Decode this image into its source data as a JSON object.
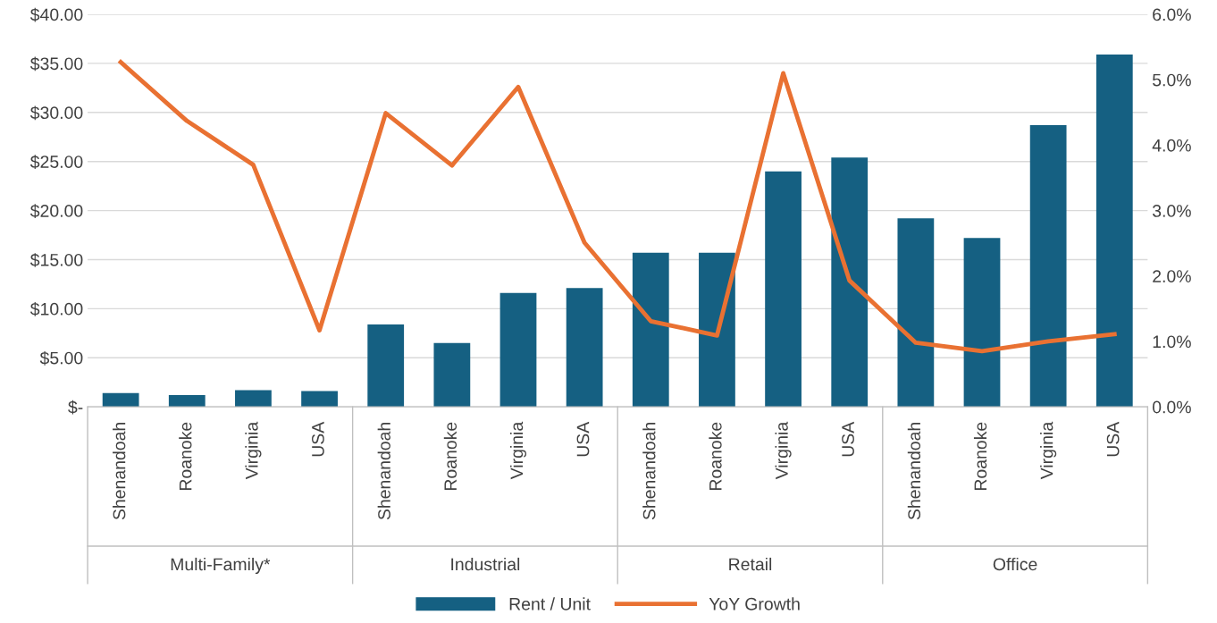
{
  "chart_data": {
    "type": "bar",
    "categories": [
      "Shenandoah",
      "Roanoke",
      "Virginia",
      "USA",
      "Shenandoah",
      "Roanoke",
      "Virginia",
      "USA",
      "Shenandoah",
      "Roanoke",
      "Virginia",
      "USA",
      "Shenandoah",
      "Roanoke",
      "Virginia",
      "USA"
    ],
    "series": [
      {
        "name": "Rent / Unit",
        "color": "#156082",
        "values": [
          1.4,
          1.2,
          1.7,
          1.6,
          8.4,
          6.5,
          11.6,
          12.1,
          15.7,
          15.7,
          24.0,
          25.4,
          19.2,
          17.2,
          28.7,
          35.9
        ]
      },
      {
        "name": "YoY Growth",
        "type": "line",
        "axis": "y2",
        "color": "#e97132",
        "values": [
          5.27,
          4.37,
          3.7,
          1.17,
          4.49,
          3.69,
          4.89,
          2.51,
          1.31,
          1.09,
          5.1,
          1.93,
          0.98,
          0.85,
          1.0,
          1.11
        ]
      }
    ],
    "ylim": [
      0,
      40
    ],
    "yticks": [
      {
        "value": 0,
        "label": "$-"
      },
      {
        "value": 5,
        "label": "$5.00"
      },
      {
        "value": 10,
        "label": "$10.00"
      },
      {
        "value": 15,
        "label": "$15.00"
      },
      {
        "value": 20,
        "label": "$20.00"
      },
      {
        "value": 25,
        "label": "$25.00"
      },
      {
        "value": 30,
        "label": "$30.00"
      },
      {
        "value": 35,
        "label": "$35.00"
      },
      {
        "value": 40,
        "label": "$40.00"
      }
    ],
    "y2lim": [
      0,
      6
    ],
    "y2ticks": [
      {
        "value": 0,
        "label": "0.0%"
      },
      {
        "value": 1,
        "label": "1.0%"
      },
      {
        "value": 2,
        "label": "2.0%"
      },
      {
        "value": 3,
        "label": "3.0%"
      },
      {
        "value": 4,
        "label": "4.0%"
      },
      {
        "value": 5,
        "label": "5.0%"
      },
      {
        "value": 6,
        "label": "6.0%"
      }
    ],
    "annotations": [
      "Multi-Family*",
      "Industrial",
      "Retail",
      "Office"
    ],
    "grid": "y",
    "legend": "bottom",
    "marker": "none",
    "line_style": "solid"
  }
}
